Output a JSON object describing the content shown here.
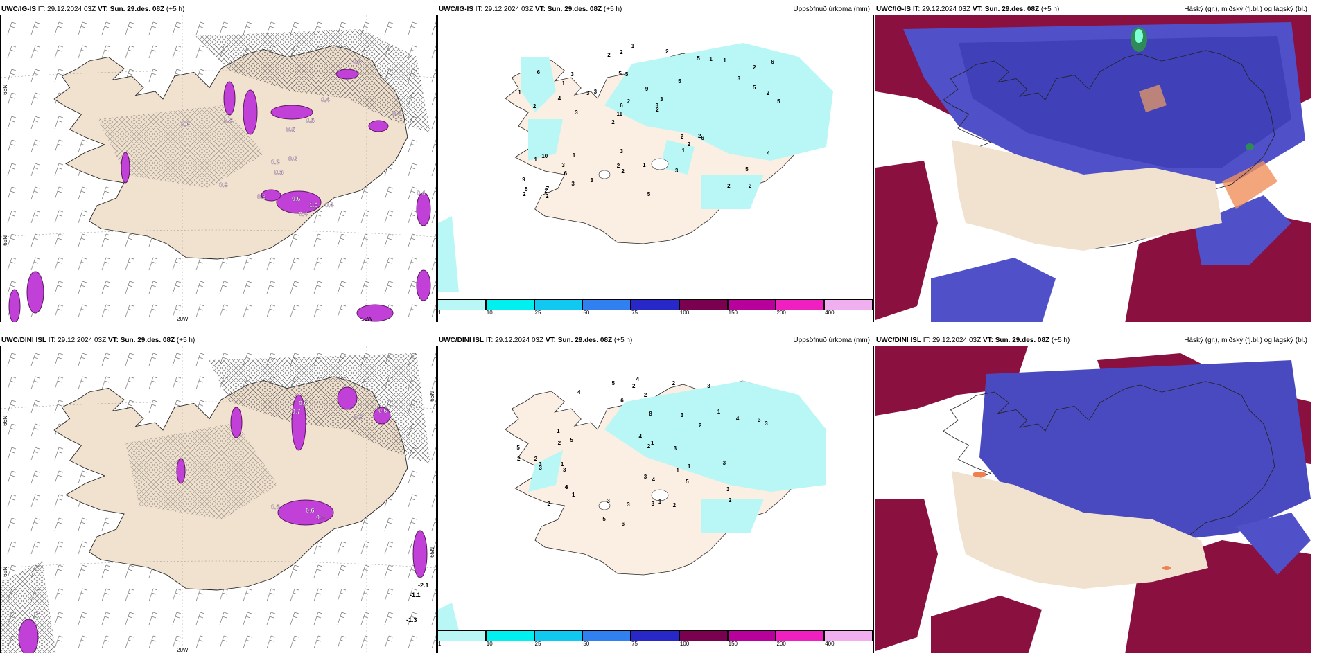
{
  "panels": [
    {
      "label": "UWC/IG-IS",
      "it_label": "IT:",
      "it_value": "29.12.2024 03Z",
      "vt_label": "VT:",
      "vt_value": "Sun. 29.des. 08Z",
      "lead": "(+5 h)",
      "right_title": ""
    },
    {
      "label": "UWC/IG-IS",
      "it_label": "IT:",
      "it_value": "29.12.2024 03Z",
      "vt_label": "VT:",
      "vt_value": "Sun. 29.des. 08Z",
      "lead": "(+5 h)",
      "right_title": "Uppsöfnuð úrkoma (mm)"
    },
    {
      "label": "UWC/IG-IS",
      "it_label": "IT:",
      "it_value": "29.12.2024 03Z",
      "vt_label": "VT:",
      "vt_value": "Sun. 29.des. 08Z",
      "lead": "(+5 h)",
      "right_title": "Háský (gr.), miðský (fj.bl.) og lágský (bl.)"
    },
    {
      "label": "UWC/DINI ISL",
      "it_label": "IT:",
      "it_value": "29.12.2024 03Z",
      "vt_label": "VT:",
      "vt_value": "Sun. 29.des. 08Z",
      "lead": "(+5 h)",
      "right_title": ""
    },
    {
      "label": "UWC/DINI ISL",
      "it_label": "IT:",
      "it_value": "29.12.2024 03Z",
      "vt_label": "VT:",
      "vt_value": "Sun. 29.des. 08Z",
      "lead": "(+5 h)",
      "right_title": "Uppsöfnuð úrkoma (mm)"
    },
    {
      "label": "UWC/DINI ISL",
      "it_label": "IT:",
      "it_value": "29.12.2024 03Z",
      "vt_label": "VT:",
      "vt_value": "Sun. 29.des. 08Z",
      "lead": "(+5 h)",
      "right_title": "Háský (gr.), miðský (fj.bl.) og lágský (bl.)"
    }
  ],
  "axis_labels": {
    "lon_20w": "20W",
    "lon_15w": "15W",
    "lat_66n": "66N",
    "lat_65n": "65N"
  },
  "precip_colorbar": {
    "labels": [
      "1",
      "10",
      "25",
      "50",
      "75",
      "100",
      "150",
      "200",
      "400"
    ],
    "colors": [
      "#b8f7f5",
      "#00f0f0",
      "#10c8f0",
      "#3080f0",
      "#2828c8",
      "#7a0050",
      "#b8009a",
      "#f020c0",
      "#f0b0f0"
    ]
  },
  "colors": {
    "land": "#f1e1cf",
    "mid_cloud": "#4848c0",
    "low_cloud": "#8a1040",
    "precip_light": "#b8f7f5",
    "mixed_precip": "#c040d8"
  },
  "precip_values_top": [
    "2",
    "2",
    "2",
    "2",
    "5",
    "7",
    "5",
    "9",
    "10",
    "3",
    "9",
    "6",
    "5",
    "3",
    "6",
    "6",
    "2",
    "5",
    "2",
    "5",
    "11",
    "2",
    "6",
    "3",
    "5",
    "1",
    "2",
    "5",
    "2",
    "5",
    "3",
    "4",
    "1",
    "3",
    "2",
    "3",
    "5",
    "2",
    "2",
    "1",
    "3",
    "6",
    "2",
    "3",
    "3",
    "2",
    "2",
    "1",
    "1",
    "1",
    "3",
    "1",
    "1",
    "1",
    "2",
    "2",
    "2",
    "2",
    "4",
    "3",
    "3"
  ],
  "precip_values_bottom": [
    "2",
    "3",
    "4",
    "1",
    "4",
    "5",
    "3",
    "6",
    "4",
    "2",
    "2",
    "4",
    "5",
    "2",
    "6",
    "5",
    "2",
    "5",
    "4",
    "5",
    "2",
    "2",
    "6",
    "1",
    "4",
    "3",
    "3",
    "2",
    "8",
    "1",
    "1",
    "1",
    "1",
    "3",
    "3",
    "3",
    "3",
    "3",
    "3",
    "3",
    "3",
    "2",
    "3",
    "1",
    "2",
    "2",
    "1",
    "3"
  ],
  "temp_values_top": [
    "0.3",
    "0.4",
    "0.5",
    "0.3",
    "0.4",
    "0.6",
    "0.8",
    "0.5",
    "0.6",
    "0.4",
    "1.0",
    "0.6",
    "0.3",
    "0.5",
    "0.8",
    "0.6",
    "0.4"
  ],
  "temp_values_bottom": [
    "0.6",
    "0.5",
    "0.6",
    "0.8",
    "0.6",
    "0.5",
    "0.7",
    "-2.1",
    "-1.1",
    "-1.3"
  ]
}
